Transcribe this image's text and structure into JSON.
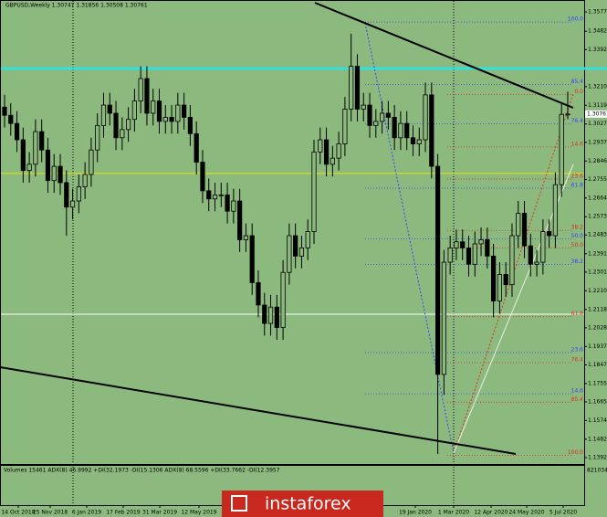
{
  "chart_data": {
    "type": "candlestick",
    "title": "GBPUSD,Weekly  1.30747 1.31856 1.30508 1.30761",
    "last_price_label": "1.30761",
    "open": [
      1.311,
      1.307,
      1.303,
      1.295,
      1.28,
      1.283,
      1.299,
      1.29,
      1.275,
      1.282,
      1.274,
      1.262,
      1.265,
      1.272,
      1.278,
      1.29,
      1.302,
      1.312,
      1.308,
      1.296,
      1.3,
      1.305,
      1.314,
      1.325,
      1.308,
      1.314,
      1.304,
      1.306,
      1.304,
      1.312,
      1.306,
      1.298,
      1.284,
      1.27,
      1.266,
      1.268,
      1.268,
      1.26,
      1.265,
      1.246,
      1.248,
      1.225,
      1.214,
      1.205,
      1.213,
      1.203,
      1.23,
      1.248,
      1.238,
      1.242,
      1.25,
      1.289,
      1.295,
      1.283,
      1.286,
      1.293,
      1.31,
      1.331,
      1.31,
      1.312,
      1.302,
      1.304,
      1.308,
      1.306,
      1.296,
      1.303,
      1.296,
      1.293,
      1.295,
      1.317,
      1.282,
      1.18,
      1.235,
      1.242,
      1.245,
      1.242,
      1.234,
      1.244,
      1.246,
      1.238,
      1.216,
      1.229,
      1.224,
      1.248,
      1.259,
      1.243,
      1.234,
      1.235,
      1.25,
      1.248,
      1.273,
      1.30747
    ],
    "high": [
      1.317,
      1.313,
      1.309,
      1.301,
      1.289,
      1.305,
      1.305,
      1.296,
      1.288,
      1.288,
      1.28,
      1.271,
      1.278,
      1.284,
      1.296,
      1.308,
      1.318,
      1.318,
      1.314,
      1.306,
      1.311,
      1.32,
      1.331,
      1.331,
      1.32,
      1.32,
      1.312,
      1.312,
      1.318,
      1.318,
      1.312,
      1.304,
      1.29,
      1.276,
      1.274,
      1.274,
      1.274,
      1.271,
      1.271,
      1.254,
      1.254,
      1.231,
      1.22,
      1.219,
      1.219,
      1.236,
      1.254,
      1.254,
      1.248,
      1.256,
      1.295,
      1.301,
      1.301,
      1.292,
      1.299,
      1.316,
      1.347,
      1.337,
      1.318,
      1.318,
      1.31,
      1.314,
      1.314,
      1.312,
      1.309,
      1.309,
      1.302,
      1.301,
      1.323,
      1.323,
      1.288,
      1.241,
      1.248,
      1.251,
      1.251,
      1.248,
      1.25,
      1.252,
      1.252,
      1.244,
      1.235,
      1.235,
      1.254,
      1.265,
      1.265,
      1.249,
      1.241,
      1.256,
      1.256,
      1.279,
      1.313,
      1.31856
    ],
    "low": [
      1.301,
      1.297,
      1.289,
      1.274,
      1.274,
      1.277,
      1.284,
      1.269,
      1.269,
      1.268,
      1.248,
      1.256,
      1.259,
      1.266,
      1.272,
      1.284,
      1.296,
      1.302,
      1.29,
      1.29,
      1.294,
      1.299,
      1.308,
      1.302,
      1.302,
      1.298,
      1.298,
      1.298,
      1.298,
      1.3,
      1.292,
      1.278,
      1.264,
      1.26,
      1.26,
      1.262,
      1.254,
      1.254,
      1.24,
      1.24,
      1.219,
      1.208,
      1.199,
      1.199,
      1.197,
      1.197,
      1.224,
      1.232,
      1.232,
      1.236,
      1.244,
      1.283,
      1.277,
      1.277,
      1.28,
      1.287,
      1.304,
      1.304,
      1.304,
      1.296,
      1.296,
      1.298,
      1.3,
      1.29,
      1.29,
      1.29,
      1.287,
      1.287,
      1.289,
      1.276,
      1.141,
      1.17,
      1.229,
      1.236,
      1.236,
      1.228,
      1.228,
      1.238,
      1.232,
      1.208,
      1.21,
      1.218,
      1.218,
      1.242,
      1.237,
      1.228,
      1.228,
      1.229,
      1.242,
      1.242,
      1.267,
      1.30508
    ],
    "close": [
      1.307,
      1.303,
      1.295,
      1.28,
      1.283,
      1.299,
      1.29,
      1.275,
      1.282,
      1.274,
      1.262,
      1.265,
      1.272,
      1.278,
      1.29,
      1.302,
      1.312,
      1.308,
      1.296,
      1.3,
      1.305,
      1.314,
      1.325,
      1.308,
      1.314,
      1.304,
      1.306,
      1.304,
      1.312,
      1.306,
      1.298,
      1.284,
      1.27,
      1.266,
      1.268,
      1.268,
      1.26,
      1.265,
      1.246,
      1.248,
      1.225,
      1.214,
      1.205,
      1.213,
      1.203,
      1.23,
      1.248,
      1.238,
      1.242,
      1.25,
      1.289,
      1.295,
      1.283,
      1.286,
      1.293,
      1.31,
      1.331,
      1.31,
      1.312,
      1.302,
      1.304,
      1.308,
      1.306,
      1.296,
      1.303,
      1.296,
      1.293,
      1.295,
      1.317,
      1.282,
      1.18,
      1.235,
      1.242,
      1.245,
      1.242,
      1.234,
      1.244,
      1.246,
      1.238,
      1.216,
      1.229,
      1.224,
      1.248,
      1.259,
      1.243,
      1.234,
      1.235,
      1.25,
      1.248,
      1.273,
      1.30747,
      1.30761
    ],
    "up_color": "#8cb97e",
    "down_color": "#000000",
    "ylim": [
      1.1361,
      1.3635
    ],
    "yticks": [
      {
        "value": 1.3577,
        "label": "1.35770"
      },
      {
        "value": 1.3482,
        "label": "1.34820"
      },
      {
        "value": 1.3392,
        "label": "1.33920"
      },
      {
        "value": 1.32105,
        "label": "1.32105"
      },
      {
        "value": 1.3119,
        "label": "1.31190"
      },
      {
        "value": 1.30275,
        "label": "1.30275"
      },
      {
        "value": 1.29375,
        "label": "1.29375"
      },
      {
        "value": 1.2846,
        "label": "1.28460"
      },
      {
        "value": 1.2755,
        "label": "1.27550"
      },
      {
        "value": 1.26645,
        "label": "1.26645"
      },
      {
        "value": 1.2573,
        "label": "1.25730"
      },
      {
        "value": 1.24835,
        "label": "1.24835"
      },
      {
        "value": 1.23915,
        "label": "1.23915"
      },
      {
        "value": 1.23015,
        "label": "1.23015"
      },
      {
        "value": 1.221,
        "label": "1.22100"
      },
      {
        "value": 1.21185,
        "label": "1.21185"
      },
      {
        "value": 1.20285,
        "label": "1.20285"
      },
      {
        "value": 1.1937,
        "label": "1.19370"
      },
      {
        "value": 1.1847,
        "label": "1.18470"
      },
      {
        "value": 1.17555,
        "label": "1.17555"
      },
      {
        "value": 1.16655,
        "label": "1.16655"
      },
      {
        "value": 1.1574,
        "label": "1.15740"
      },
      {
        "value": 1.14825,
        "label": "1.14825"
      },
      {
        "value": 1.13925,
        "label": "1.13925"
      }
    ],
    "x_labels": [
      "14 Oct 2018",
      "25 Nov 2018",
      "6 Jan 2019",
      "17 Feb 2019",
      "31 Mar 2019",
      "12 May 2019",
      "19 Jan 2020",
      "1 Mar 2020",
      "12 Apr 2020",
      "24 May 2020",
      "5 Jul 2020"
    ],
    "levels": [
      {
        "price": 1.3299,
        "color": "#33e0e0"
      },
      {
        "price": 1.2785,
        "color": "#e8e800"
      },
      {
        "price": 1.2095,
        "color": "#ffffff"
      }
    ],
    "fib_levels": [
      {
        "label": "100.0",
        "price": 1.3527,
        "color": "#3344ff"
      },
      {
        "label": "85.4",
        "price": 1.3221,
        "color": "#3344ff"
      },
      {
        "label": "0.0",
        "price": 1.3172,
        "color": "#e03020"
      },
      {
        "label": "76.4",
        "price": 1.3028,
        "color": "#3344ff"
      },
      {
        "label": "14.6",
        "price": 1.2915,
        "color": "#e03020"
      },
      {
        "label": "23.6",
        "price": 1.2758,
        "color": "#e03020"
      },
      {
        "label": "61.8",
        "price": 1.2713,
        "color": "#3344ff"
      },
      {
        "label": "38.2",
        "price": 1.2506,
        "color": "#e03020"
      },
      {
        "label": "50.0",
        "price": 1.2465,
        "color": "#3344ff"
      },
      {
        "label": "50.0",
        "price": 1.242,
        "color": "#e03020"
      },
      {
        "label": "38.2",
        "price": 1.2339,
        "color": "#3344ff"
      },
      {
        "label": "61.8",
        "price": 1.2083,
        "color": "#e03020"
      },
      {
        "label": "23.6",
        "price": 1.1907,
        "color": "#3344ff"
      },
      {
        "label": "76.4",
        "price": 1.1858,
        "color": "#e03020"
      },
      {
        "label": "14.6",
        "price": 1.1705,
        "color": "#3344ff"
      },
      {
        "label": "85.4",
        "price": 1.1664,
        "color": "#e03020"
      },
      {
        "label": "100.0",
        "price": 1.1403,
        "color": "#e03020"
      }
    ],
    "indicator_label": "Volumes 15461  ADX(8) 46.9992 +DI(32.1973 -DI(15.1306  ADX(8) 68.5596 +DI(33.7662 -DI(12.3957",
    "indicator_max_label": "821034",
    "watermark": "instaforex"
  }
}
